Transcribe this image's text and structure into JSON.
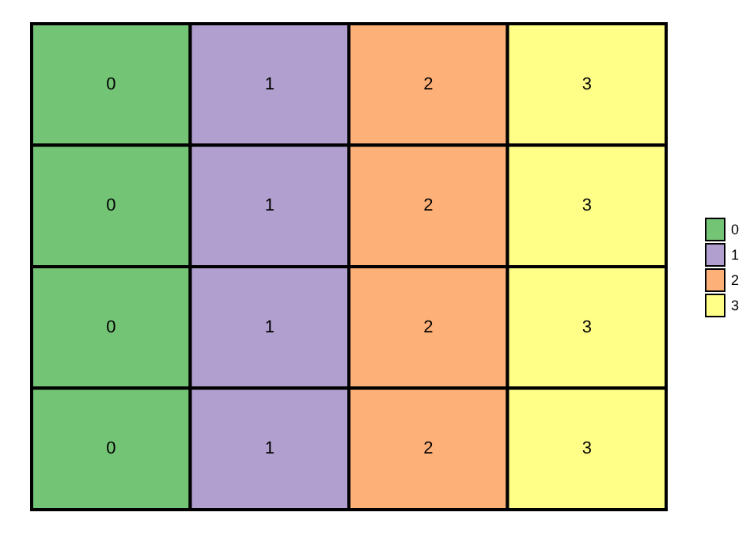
{
  "chart_data": {
    "type": "heatmap",
    "categories": [
      null,
      null,
      null,
      null
    ],
    "y_categories": [
      null,
      null,
      null,
      null
    ],
    "cells": [
      [
        0,
        1,
        2,
        3
      ],
      [
        0,
        1,
        2,
        3
      ],
      [
        0,
        1,
        2,
        3
      ],
      [
        0,
        1,
        2,
        3
      ]
    ],
    "data_labels": true,
    "colors": [
      "#74c476",
      "#b1a0cf",
      "#fdb077",
      "#ffff88"
    ],
    "clim": [
      -0.5,
      3.5
    ],
    "cticks": [
      0,
      1,
      2,
      3
    ]
  }
}
